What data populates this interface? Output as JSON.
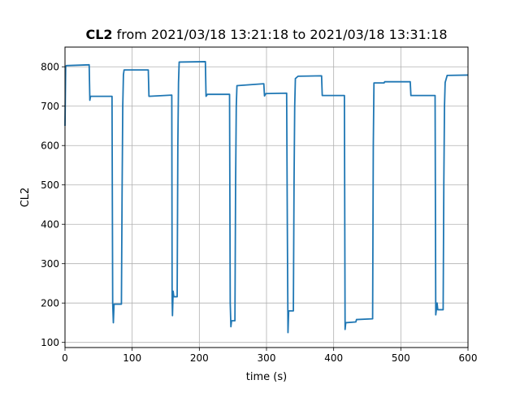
{
  "chart_data": {
    "type": "line",
    "title_bold": "CL2",
    "title_rest": " from 2021/03/18 13:21:18 to 2021/03/18 13:31:18",
    "xlabel": "time (s)",
    "ylabel": "CL2",
    "xlim": [
      0,
      600
    ],
    "ylim": [
      87,
      850
    ],
    "xticks": [
      0,
      100,
      200,
      300,
      400,
      500,
      600
    ],
    "yticks": [
      100,
      200,
      300,
      400,
      500,
      600,
      700,
      800
    ],
    "grid": true,
    "line_color": "#1f77b4",
    "series": [
      {
        "values": [
          [
            0,
            650
          ],
          [
            1,
            800
          ],
          [
            2,
            803
          ],
          [
            36,
            805
          ],
          [
            37,
            715
          ],
          [
            38,
            725
          ],
          [
            70,
            725
          ],
          [
            71,
            200
          ],
          [
            72,
            150
          ],
          [
            73,
            197
          ],
          [
            84,
            197
          ],
          [
            85,
            480
          ],
          [
            86,
            700
          ],
          [
            87,
            780
          ],
          [
            88,
            792
          ],
          [
            124,
            792
          ],
          [
            125,
            725
          ],
          [
            159,
            728
          ],
          [
            159.5,
            215
          ],
          [
            160,
            168
          ],
          [
            161,
            230
          ],
          [
            162,
            216
          ],
          [
            167,
            216
          ],
          [
            168,
            600
          ],
          [
            169,
            760
          ],
          [
            170,
            812
          ],
          [
            209,
            813
          ],
          [
            210,
            725
          ],
          [
            212,
            730
          ],
          [
            245,
            730
          ],
          [
            246,
            200
          ],
          [
            247,
            140
          ],
          [
            248,
            155
          ],
          [
            253,
            155
          ],
          [
            254,
            500
          ],
          [
            255,
            700
          ],
          [
            256,
            752
          ],
          [
            296,
            757
          ],
          [
            297,
            726
          ],
          [
            299,
            732
          ],
          [
            330,
            733
          ],
          [
            331,
            400
          ],
          [
            332,
            125
          ],
          [
            333,
            180
          ],
          [
            340,
            180
          ],
          [
            341,
            500
          ],
          [
            342,
            700
          ],
          [
            343,
            770
          ],
          [
            347,
            776
          ],
          [
            382,
            777
          ],
          [
            383,
            727
          ],
          [
            416,
            727
          ],
          [
            417,
            133
          ],
          [
            418,
            150
          ],
          [
            433,
            152
          ],
          [
            434,
            158
          ],
          [
            458,
            160
          ],
          [
            459,
            600
          ],
          [
            460,
            759
          ],
          [
            475,
            759
          ],
          [
            476,
            762
          ],
          [
            514,
            762
          ],
          [
            515,
            727
          ],
          [
            551,
            727
          ],
          [
            552,
            170
          ],
          [
            554,
            200
          ],
          [
            555,
            183
          ],
          [
            563,
            183
          ],
          [
            564,
            500
          ],
          [
            565,
            700
          ],
          [
            566,
            760
          ],
          [
            569,
            778
          ],
          [
            600,
            779
          ]
        ]
      }
    ]
  }
}
